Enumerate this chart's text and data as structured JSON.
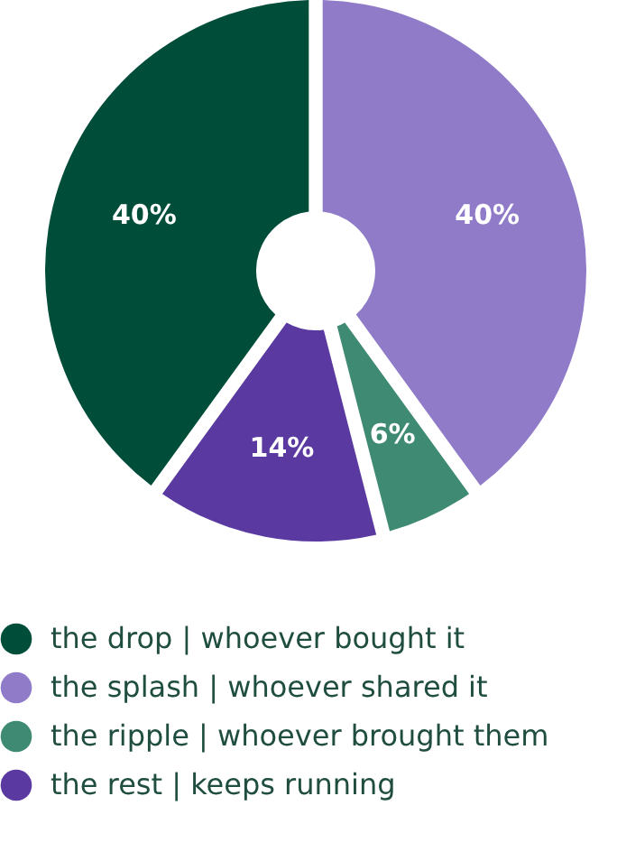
{
  "chart_data": {
    "type": "donut",
    "categories": [
      "the drop | whoever bought it",
      "the splash | whoever shared it",
      "the ripple | whoever brought them",
      "the rest | keeps running"
    ],
    "values": [
      40,
      40,
      6,
      14
    ],
    "colors": [
      "#004d3a",
      "#8f7bc8",
      "#3f8a72",
      "#5a3aa0"
    ],
    "value_labels": [
      "40%",
      "40%",
      "6%",
      "14%"
    ],
    "legend": "bottom"
  }
}
